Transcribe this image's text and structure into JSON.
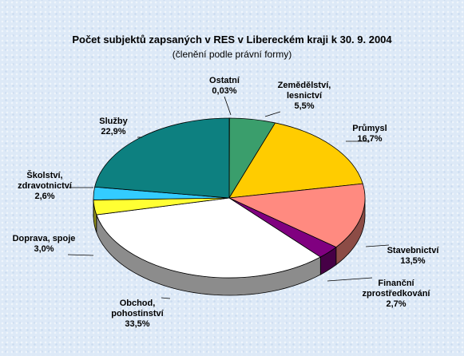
{
  "chart_data": {
    "type": "pie",
    "title": "Počet subjektů zapsaných v RES v Libereckém kraji k 30. 9. 2004",
    "subtitle": "(členění podle právní formy)",
    "three_d": true,
    "legend": "none",
    "slices": [
      {
        "name_lines": [
          "Ostatní"
        ],
        "value": 0.03,
        "value_label": "0,03%",
        "color": "#1f7f7a"
      },
      {
        "name_lines": [
          "Zemědělství,",
          "lesnictví"
        ],
        "value": 5.5,
        "value_label": "5,5%",
        "color": "#3a9e6c"
      },
      {
        "name_lines": [
          "Průmysl"
        ],
        "value": 16.7,
        "value_label": "16,7%",
        "color": "#ffcc00"
      },
      {
        "name_lines": [
          "Stavebnictví"
        ],
        "value": 13.5,
        "value_label": "13,5%",
        "color": "#ff8a80"
      },
      {
        "name_lines": [
          "Finanční",
          "zprostředkování"
        ],
        "value": 2.7,
        "value_label": "2,7%",
        "color": "#800080"
      },
      {
        "name_lines": [
          "Obchod,",
          "pohostinství"
        ],
        "value": 33.5,
        "value_label": "33,5%",
        "color": "#ffffff"
      },
      {
        "name_lines": [
          "Doprava, spoje"
        ],
        "value": 3.0,
        "value_label": "3,0%",
        "color": "#ffff33"
      },
      {
        "name_lines": [
          "Školství,",
          "zdravotnictví"
        ],
        "value": 2.6,
        "value_label": "2,6%",
        "color": "#33ccff"
      },
      {
        "name_lines": [
          "Služby"
        ],
        "value": 22.9,
        "value_label": "22,9%",
        "color": "#0d8080"
      }
    ]
  }
}
